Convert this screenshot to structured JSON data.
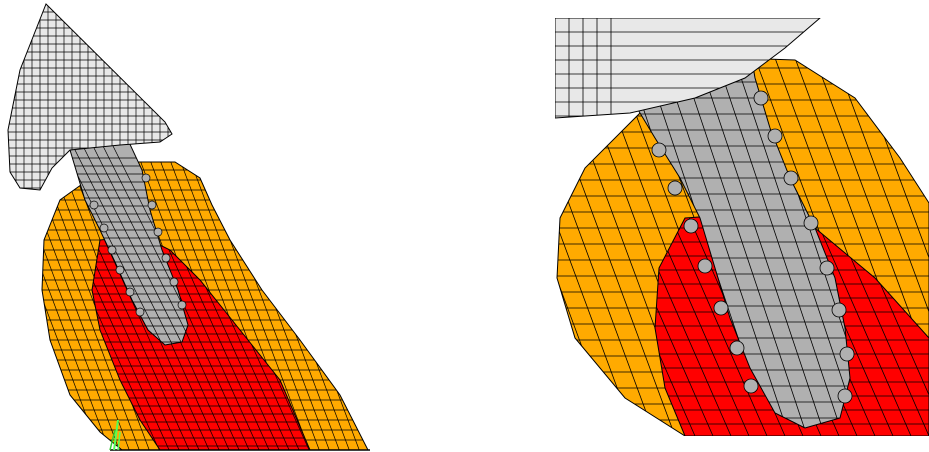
{
  "figure": {
    "panels": [
      {
        "id": "left",
        "view": "full-model"
      },
      {
        "id": "right",
        "view": "zoomed-interface"
      }
    ],
    "materials": [
      {
        "name": "crown",
        "color": "#e8e8e8"
      },
      {
        "name": "implant",
        "color": "#b0b0b0"
      },
      {
        "name": "cortical-bone",
        "color": "#ffaa00"
      },
      {
        "name": "cancellous-bone",
        "color": "#ff0000"
      }
    ],
    "mesh": {
      "line_color": "#000000"
    },
    "boundary_marker": {
      "color": "#55ff55"
    }
  }
}
